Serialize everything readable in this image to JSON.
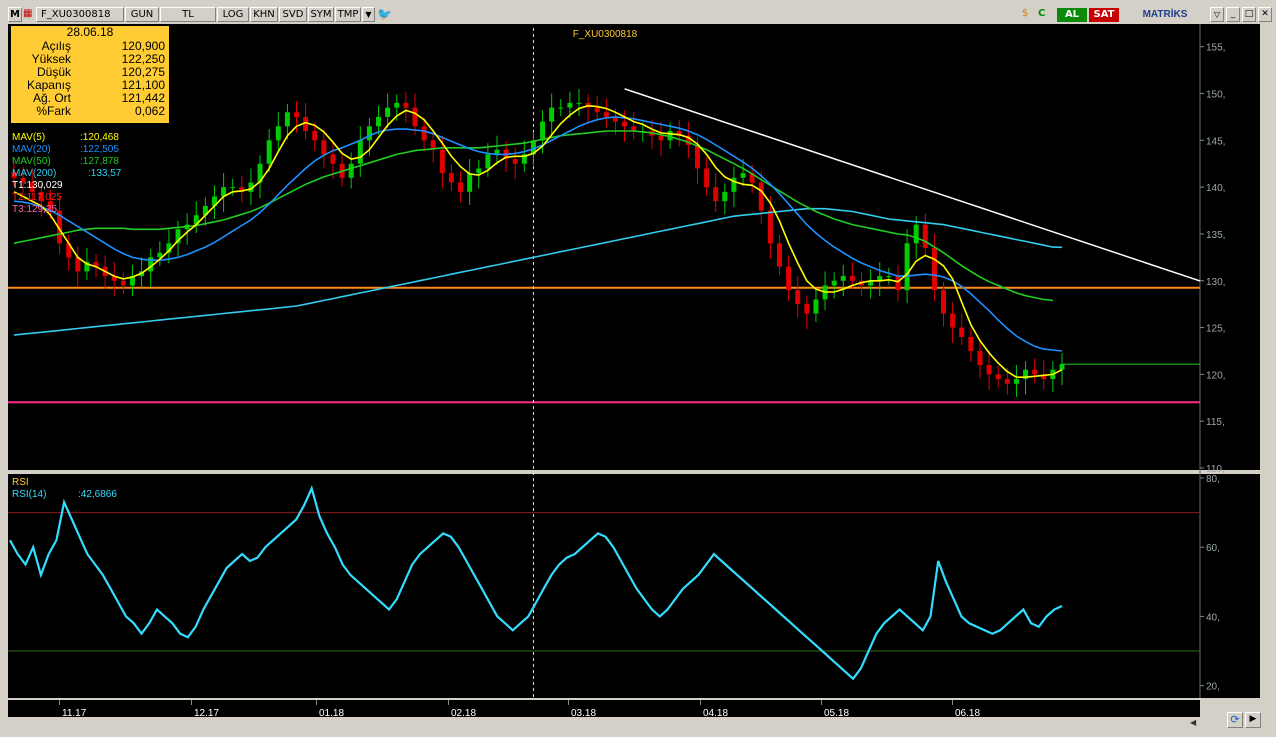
{
  "toolbar": {
    "m_label": "M",
    "symbol": "F_XU0300818",
    "period": "GUN",
    "currency": "TL",
    "buttons": [
      "LOG",
      "KHN",
      "SVD",
      "SYM",
      "TMP"
    ],
    "buy_label": "AL",
    "sell_label": "SAT",
    "brand": "MATRİKS"
  },
  "colors": {
    "background": "#000000",
    "up_candle": "#00cc00",
    "down_candle": "#e00000",
    "mav5": "#ffff00",
    "mav20": "#1e90ff",
    "mav50": "#22cc22",
    "mav200": "#33ccee",
    "t1": "#ffffff",
    "t2": "#ff2020",
    "t3": "#ff66aa",
    "rsi": "#33ddff",
    "info_box": "#ffcc33"
  },
  "info": {
    "date": "28.06.18",
    "rows": [
      {
        "label": "Açılış",
        "value": "120,900"
      },
      {
        "label": "Yüksek",
        "value": "122,250"
      },
      {
        "label": "Düşük",
        "value": "120,275"
      },
      {
        "label": "Kapanış",
        "value": "121,100"
      },
      {
        "label": "Ağ. Ort",
        "value": "121,442"
      },
      {
        "label": "%Fark",
        "value": "0,062"
      }
    ]
  },
  "legend": [
    {
      "label": "MAV(5)",
      "value": ":120,468",
      "color": "#ffff00"
    },
    {
      "label": "MAV(20)",
      "value": ":122,505",
      "color": "#1e90ff"
    },
    {
      "label": "MAV(50)",
      "value": ":127,878",
      "color": "#22cc22"
    },
    {
      "label": "MAV(200)",
      "value": ":133,57",
      "color": "#33ccee"
    },
    {
      "label": "T1:130,029",
      "value": "",
      "color": "#ffffff"
    },
    {
      "label": "T2:117,025",
      "value": "",
      "color": "#ff2020"
    },
    {
      "label": "T3:129,25",
      "value": "",
      "color": "#ff66aa"
    }
  ],
  "rsi_legend": {
    "title": "RSI",
    "label": "RSI(14)",
    "value": ":42,6866"
  },
  "chart_data": [
    {
      "type": "candlestick",
      "title": "F_XU0300818",
      "ylim": [
        110,
        157
      ],
      "y_ticks": [
        110,
        115,
        120,
        125,
        130,
        135,
        140,
        145,
        150,
        155
      ],
      "y_tick_labels": [
        "110,",
        "115,",
        "120,",
        "125,",
        "130,",
        "135,",
        "140,",
        "145,",
        "150,",
        "155,"
      ],
      "x_labels": [
        "11.17",
        "12.17",
        "01.18",
        "02.18",
        "03.18",
        "04.18",
        "05.18",
        "06.18"
      ],
      "close": [
        141,
        140.5,
        139.5,
        138.5,
        137.5,
        134,
        132.5,
        131,
        132,
        131.5,
        130.5,
        130,
        129.5,
        130.5,
        131,
        132.5,
        133,
        134,
        135.5,
        136,
        137,
        138,
        139,
        140,
        140,
        139.5,
        140.5,
        142.5,
        145,
        146.5,
        148,
        147.5,
        146,
        145,
        143.5,
        142.5,
        141,
        142.5,
        145,
        146.5,
        147.5,
        148.5,
        149,
        148.5,
        146.5,
        145,
        144,
        141.5,
        140.5,
        139.5,
        141.5,
        142,
        143.5,
        144,
        143,
        142.5,
        143.5,
        145,
        147,
        148.5,
        148.5,
        149,
        149,
        148.5,
        148,
        147.5,
        147,
        146.5,
        146,
        146,
        145.5,
        145,
        146,
        145.5,
        144.5,
        142,
        140,
        138.5,
        139.5,
        141,
        141.5,
        140.5,
        137.5,
        134,
        131.5,
        129,
        127.5,
        126.5,
        128,
        129.5,
        130,
        130.5,
        130,
        129.5,
        130,
        130.5,
        130.5,
        129,
        134,
        136,
        133.5,
        129,
        126.5,
        125,
        124,
        122.5,
        121,
        120,
        119.5,
        119,
        119.5,
        120.5,
        120,
        119.5,
        120.5,
        121.1
      ],
      "mav5": [
        139.5,
        139,
        138.5,
        138,
        137,
        135.5,
        134,
        132.5,
        131.8,
        131.5,
        131,
        130.5,
        130.2,
        130.4,
        130.8,
        131.5,
        132.3,
        133.2,
        134.3,
        135.2,
        136,
        137,
        138,
        139,
        139.5,
        139.6,
        139.8,
        140.6,
        142,
        143.8,
        145.5,
        146.5,
        146.9,
        146.6,
        145.9,
        144.8,
        143.6,
        143,
        143.2,
        144,
        145.3,
        146.6,
        147.6,
        148.2,
        147.9,
        147.2,
        146,
        144.7,
        143.3,
        142.2,
        141.4,
        141.3,
        141.8,
        142.6,
        143.2,
        143.3,
        143.3,
        143.6,
        144.4,
        145.6,
        146.8,
        147.7,
        148.4,
        148.7,
        148.6,
        148.4,
        148,
        147.5,
        147,
        146.7,
        146.2,
        145.8,
        145.7,
        145.6,
        145.3,
        144.6,
        143.5,
        142.1,
        141.1,
        140.6,
        140.3,
        140.2,
        139.6,
        138.3,
        136.4,
        134,
        131.9,
        130,
        129.1,
        128.8,
        128.8,
        129.1,
        129.5,
        129.8,
        130,
        130,
        130.1,
        129.9,
        130.7,
        132.1,
        132.7,
        132.3,
        131.6,
        130.2,
        127.7,
        125.3,
        123.6,
        122.3,
        121.2,
        120.3,
        119.7,
        119.7,
        119.8,
        119.9,
        120,
        120.5
      ],
      "mav20": [
        138.5,
        138.4,
        138.2,
        137.9,
        137.5,
        137,
        136.4,
        135.8,
        135.2,
        134.6,
        134,
        133.4,
        132.9,
        132.5,
        132.3,
        132.2,
        132.2,
        132.3,
        132.5,
        132.8,
        133.2,
        133.6,
        134.1,
        134.7,
        135.3,
        135.9,
        136.5,
        137.3,
        138.2,
        139.2,
        140.2,
        141.1,
        142,
        142.8,
        143.4,
        143.9,
        144.2,
        144.6,
        145,
        145.5,
        145.9,
        146.1,
        146.2,
        146.2,
        146.1,
        146,
        145.7,
        145.3,
        144.9,
        144.5,
        144.1,
        143.8,
        143.6,
        143.5,
        143.5,
        143.6,
        143.8,
        144.1,
        144.5,
        145,
        145.5,
        146,
        146.5,
        146.9,
        147.2,
        147.4,
        147.5,
        147.4,
        147.3,
        147.1,
        146.9,
        146.7,
        146.5,
        146.3,
        146,
        145.6,
        145.1,
        144.5,
        143.9,
        143.3,
        142.7,
        142,
        141.2,
        140.3,
        139.3,
        138.2,
        137.1,
        136,
        135.1,
        134.3,
        133.6,
        133,
        132.4,
        131.9,
        131.5,
        131.1,
        130.8,
        130.5,
        130.5,
        130.6,
        130.7,
        130.6,
        130.4,
        130,
        129.4,
        128.6,
        127.7,
        126.8,
        125.8,
        124.9,
        124.1,
        123.5,
        123,
        122.7,
        122.6,
        122.5
      ],
      "mav50": [
        134,
        134.2,
        134.4,
        134.6,
        134.8,
        135,
        135.2,
        135.4,
        135.5,
        135.6,
        135.6,
        135.6,
        135.6,
        135.5,
        135.5,
        135.5,
        135.5,
        135.6,
        135.7,
        135.8,
        135.9,
        136.1,
        136.3,
        136.5,
        136.8,
        137.1,
        137.4,
        137.8,
        138.3,
        138.8,
        139.3,
        139.8,
        140.3,
        140.7,
        141.1,
        141.4,
        141.7,
        142,
        142.3,
        142.6,
        142.9,
        143.2,
        143.5,
        143.7,
        143.9,
        144,
        144.1,
        144.2,
        144.2,
        144.2,
        144.2,
        144.2,
        144.3,
        144.4,
        144.5,
        144.6,
        144.7,
        144.9,
        145.1,
        145.3,
        145.5,
        145.6,
        145.7,
        145.8,
        145.9,
        146,
        146,
        146,
        146,
        145.9,
        145.8,
        145.6,
        145.4,
        145.1,
        144.8,
        144.4,
        144,
        143.5,
        143,
        142.5,
        142,
        141.4,
        140.8,
        140.2,
        139.6,
        139,
        138.4,
        137.9,
        137.4,
        137,
        136.6,
        136.3,
        136,
        135.8,
        135.6,
        135.4,
        135.2,
        135,
        134.9,
        134.6,
        134.2,
        133.6,
        133,
        132.3,
        131.6,
        131,
        130.4,
        129.9,
        129.5,
        129.1,
        128.7,
        128.4,
        128.2,
        128,
        127.9
      ],
      "mav200": [
        124.2,
        124.3,
        124.4,
        124.5,
        124.6,
        124.7,
        124.8,
        124.9,
        125,
        125.1,
        125.2,
        125.3,
        125.4,
        125.5,
        125.6,
        125.7,
        125.8,
        125.9,
        126,
        126.1,
        126.2,
        126.3,
        126.4,
        126.5,
        126.6,
        126.7,
        126.8,
        126.9,
        127,
        127.1,
        127.2,
        127.3,
        127.5,
        127.7,
        127.9,
        128.1,
        128.3,
        128.5,
        128.7,
        128.9,
        129.1,
        129.3,
        129.5,
        129.7,
        129.9,
        130.1,
        130.3,
        130.5,
        130.7,
        130.9,
        131.1,
        131.3,
        131.5,
        131.7,
        131.9,
        132.1,
        132.3,
        132.5,
        132.7,
        132.9,
        133.1,
        133.3,
        133.5,
        133.7,
        133.9,
        134.1,
        134.3,
        134.5,
        134.7,
        134.9,
        135.1,
        135.3,
        135.5,
        135.7,
        135.9,
        136.1,
        136.3,
        136.5,
        136.7,
        136.9,
        137,
        137.1,
        137.2,
        137.3,
        137.4,
        137.5,
        137.6,
        137.7,
        137.7,
        137.7,
        137.6,
        137.5,
        137.4,
        137.2,
        137,
        136.8,
        136.6,
        136.5,
        136.4,
        136.3,
        136.2,
        136.1,
        136,
        135.8,
        135.6,
        135.4,
        135.2,
        135,
        134.8,
        134.6,
        134.4,
        134.2,
        134,
        133.8,
        133.6,
        133.57
      ],
      "horizontal_lines": [
        {
          "name": "T1",
          "value": 130.029,
          "color": "#ffffff"
        },
        {
          "name": "T2",
          "value": 117.025,
          "color": "#ff2020"
        },
        {
          "name": "T3",
          "value": 129.25,
          "color": "#ff66aa"
        }
      ],
      "last_price": 121.1
    },
    {
      "type": "line",
      "title": "RSI",
      "series_name": "RSI(14)",
      "ylim": [
        17,
        80
      ],
      "y_ticks": [
        20,
        40,
        60,
        80
      ],
      "y_tick_labels": [
        "20,",
        "40,",
        "60,",
        "80,"
      ],
      "reference_lines": [
        70,
        30
      ],
      "values": [
        62,
        58,
        55,
        60,
        52,
        58,
        62,
        73,
        68,
        63,
        58,
        55,
        52,
        48,
        44,
        40,
        38,
        35,
        38,
        42,
        40,
        38,
        35,
        34,
        37,
        42,
        46,
        50,
        54,
        56,
        58,
        56,
        57,
        60,
        62,
        64,
        66,
        68,
        72,
        77,
        69,
        64,
        60,
        55,
        52,
        50,
        48,
        46,
        44,
        42,
        45,
        50,
        55,
        58,
        60,
        62,
        64,
        63,
        60,
        56,
        52,
        48,
        44,
        40,
        38,
        36,
        38,
        40,
        44,
        48,
        52,
        55,
        57,
        58,
        60,
        62,
        64,
        63,
        60,
        56,
        52,
        48,
        45,
        42,
        40,
        42,
        45,
        48,
        50,
        52,
        55,
        58,
        56,
        54,
        52,
        50,
        48,
        46,
        44,
        42,
        40,
        38,
        36,
        34,
        32,
        30,
        28,
        26,
        24,
        22,
        25,
        30,
        35,
        38,
        40,
        42,
        40,
        38,
        36,
        40,
        56,
        50,
        45,
        40,
        38,
        37,
        36,
        35,
        36,
        38,
        40,
        42,
        38,
        37,
        40,
        42,
        43
      ]
    }
  ]
}
